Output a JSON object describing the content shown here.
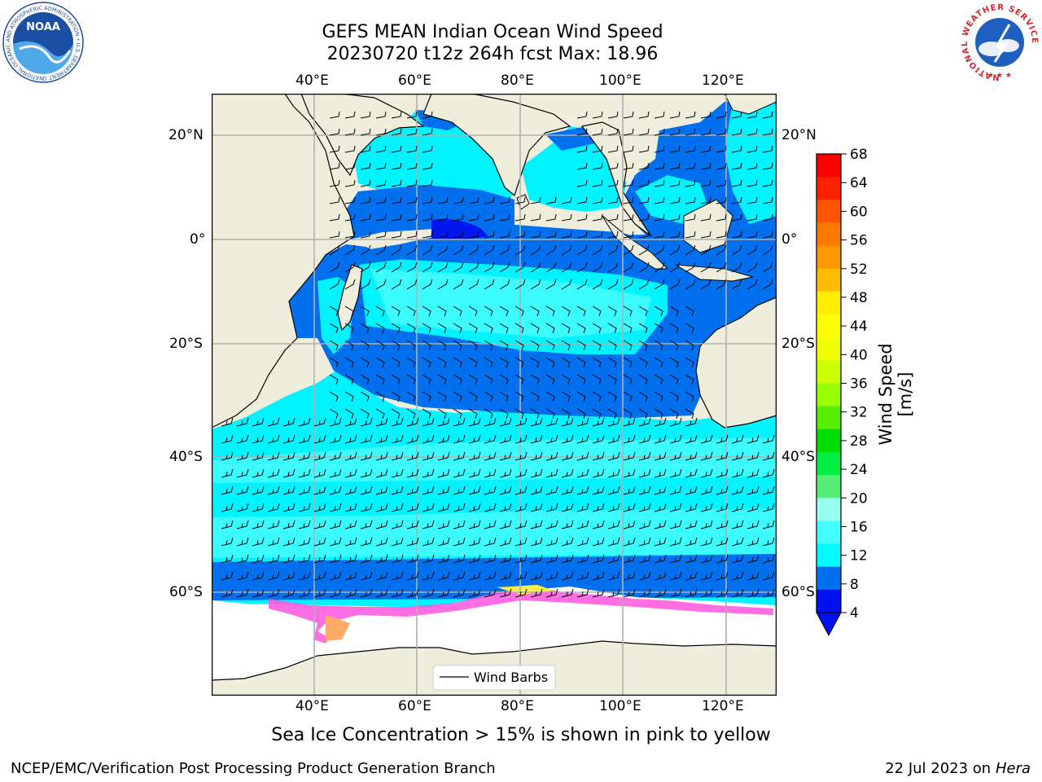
{
  "header": {
    "title_line1": "GEFS MEAN Indian Ocean Wind Speed",
    "title_line2": "20230720 t12z 264h fcst   Max: 18.96"
  },
  "map": {
    "lon_ticks_top": [
      "40°E",
      "60°E",
      "80°E",
      "100°E",
      "120°E"
    ],
    "lon_ticks_bottom": [
      "40°E",
      "60°E",
      "80°E",
      "100°E",
      "120°E"
    ],
    "lat_ticks_left": [
      "20°N",
      "0°",
      "20°S",
      "40°S",
      "60°S"
    ],
    "lat_ticks_right": [
      "20°N",
      "0°",
      "20°S",
      "40°S",
      "60°S"
    ],
    "legend_label": "Wind Barbs",
    "colors": {
      "land": "#efeedc",
      "speed_4_8": "#0070ef",
      "speed_8_12": "#00f4ff",
      "speed_12_16": "#3cfbff",
      "speed_deep": "#0018ee",
      "sea_ice": [
        "#ff55dd",
        "#ffaa66",
        "#ffee44"
      ]
    }
  },
  "colorbar": {
    "label": "Wind Speed [m/s]",
    "ticks": [
      "68",
      "64",
      "60",
      "56",
      "52",
      "48",
      "44",
      "40",
      "36",
      "32",
      "28",
      "24",
      "20",
      "16",
      "12",
      "8",
      "4"
    ],
    "colors": [
      "#fe0000",
      "#ff2000",
      "#ff5500",
      "#ff7a00",
      "#ff9900",
      "#ffbb00",
      "#ffee00",
      "#ffff00",
      "#eeff00",
      "#ccff00",
      "#99ff00",
      "#55ee00",
      "#00dd00",
      "#00ee44",
      "#55ee77",
      "#99ffee",
      "#44ffff",
      "#00fcff",
      "#0070ef",
      "#0010ee"
    ]
  },
  "caption": "Sea Ice Concentration > 15% is shown in pink to yellow",
  "footer": {
    "left": "NCEP/EMC/Verification Post Processing Product Generation Branch",
    "right_prefix": "22 Jul 2023 on ",
    "right_host": "Hera"
  },
  "logos": {
    "noaa_text": "NOAA",
    "noaa_ring_text": "NATIONAL OCEANIC AND ATMOSPHERIC ADMINISTRATION • U.S. DEPARTMENT OF COMMERCE",
    "nws_ring_text": "NATIONAL WEATHER SERVICE"
  }
}
